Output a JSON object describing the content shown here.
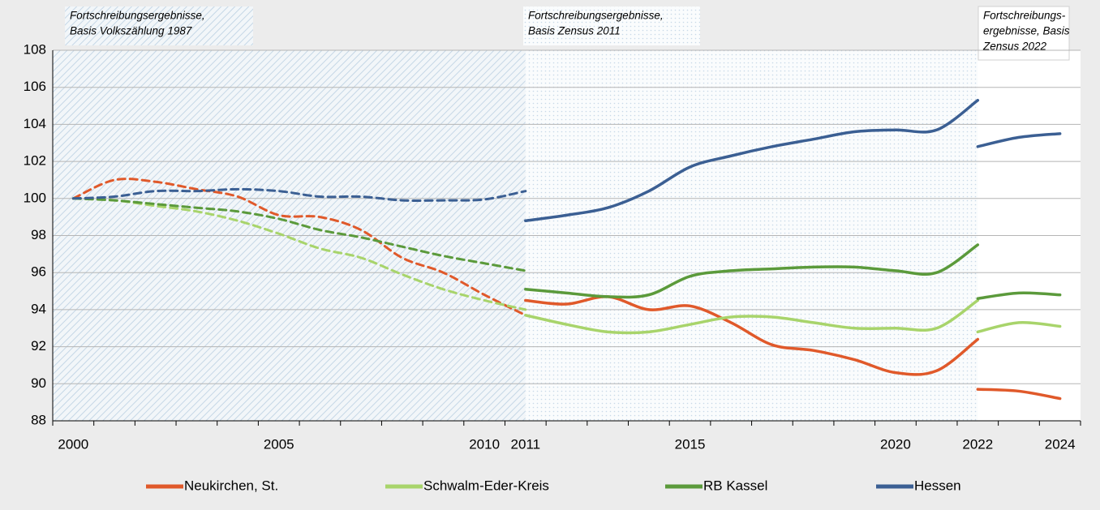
{
  "chart_data": {
    "type": "line",
    "categories": [
      2000,
      null,
      null,
      null,
      null,
      2005,
      null,
      null,
      null,
      null,
      2010,
      2011,
      null,
      null,
      null,
      2015,
      null,
      null,
      null,
      null,
      2020,
      null,
      2022,
      null,
      2024
    ],
    "ylim": [
      88,
      108
    ],
    "yticks": [
      88,
      90,
      92,
      94,
      96,
      98,
      100,
      102,
      104,
      106,
      108
    ],
    "grid": true,
    "legend": "bottom",
    "annotations": [
      [
        "Fortschreibungsergebnisse,",
        "Basis Volkszählung 1987"
      ],
      [
        "Fortschreibungsergebnisse,",
        "Basis Zensus 2011"
      ],
      [
        "Fortschreibungs-",
        "ergebnisse, Basis",
        "Zensus 2022"
      ]
    ],
    "segment_styles": [
      "dashed",
      "solid",
      "solid"
    ],
    "series": [
      {
        "name": "Neukirchen, St.",
        "color": "#e0592a",
        "segments": [
          {
            "values": [
              100,
              101,
              100.9,
              100.5,
              100.1,
              99.1,
              99.0,
              98.3,
              96.8,
              96.0,
              94.8,
              93.7,
              null,
              null,
              null,
              null,
              null,
              null,
              null,
              null,
              null,
              null,
              null,
              null,
              null
            ]
          },
          {
            "values": [
              null,
              null,
              null,
              null,
              null,
              null,
              null,
              null,
              null,
              null,
              null,
              94.5,
              94.3,
              94.7,
              94.0,
              94.2,
              93.3,
              92.1,
              91.8,
              91.3,
              90.6,
              90.7,
              92.4,
              null,
              null
            ]
          },
          {
            "values": [
              null,
              null,
              null,
              null,
              null,
              null,
              null,
              null,
              null,
              null,
              null,
              null,
              null,
              null,
              null,
              null,
              null,
              null,
              null,
              null,
              null,
              null,
              89.7,
              89.6,
              89.2
            ]
          }
        ]
      },
      {
        "name": "Schwalm-Eder-Kreis",
        "color": "#a8d46b",
        "segments": [
          {
            "values": [
              100,
              99.9,
              99.6,
              99.3,
              98.8,
              98.1,
              97.3,
              96.8,
              95.9,
              95.1,
              94.5,
              94.0,
              null,
              null,
              null,
              null,
              null,
              null,
              null,
              null,
              null,
              null,
              null,
              null,
              null
            ]
          },
          {
            "values": [
              null,
              null,
              null,
              null,
              null,
              null,
              null,
              null,
              null,
              null,
              null,
              93.7,
              93.2,
              92.8,
              92.8,
              93.2,
              93.6,
              93.6,
              93.3,
              93.0,
              93.0,
              93.0,
              94.5,
              null,
              null
            ]
          },
          {
            "values": [
              null,
              null,
              null,
              null,
              null,
              null,
              null,
              null,
              null,
              null,
              null,
              null,
              null,
              null,
              null,
              null,
              null,
              null,
              null,
              null,
              null,
              null,
              92.8,
              93.3,
              93.1
            ]
          }
        ]
      },
      {
        "name": "RB Kassel",
        "color": "#5b9a3b",
        "segments": [
          {
            "values": [
              100,
              99.9,
              99.7,
              99.5,
              99.3,
              98.9,
              98.3,
              97.9,
              97.4,
              96.9,
              96.5,
              96.1,
              null,
              null,
              null,
              null,
              null,
              null,
              null,
              null,
              null,
              null,
              null,
              null,
              null
            ]
          },
          {
            "values": [
              null,
              null,
              null,
              null,
              null,
              null,
              null,
              null,
              null,
              null,
              null,
              95.1,
              94.9,
              94.7,
              94.8,
              95.8,
              96.1,
              96.2,
              96.3,
              96.3,
              96.1,
              96.0,
              97.5,
              null,
              null
            ]
          },
          {
            "values": [
              null,
              null,
              null,
              null,
              null,
              null,
              null,
              null,
              null,
              null,
              null,
              null,
              null,
              null,
              null,
              null,
              null,
              null,
              null,
              null,
              null,
              null,
              94.6,
              94.9,
              94.8
            ]
          }
        ]
      },
      {
        "name": "Hessen",
        "color": "#3b5f93",
        "segments": [
          {
            "values": [
              100,
              100.1,
              100.4,
              100.4,
              100.5,
              100.4,
              100.1,
              100.1,
              99.9,
              99.9,
              99.95,
              100.4,
              null,
              null,
              null,
              null,
              null,
              null,
              null,
              null,
              null,
              null,
              null,
              null,
              null
            ]
          },
          {
            "values": [
              null,
              null,
              null,
              null,
              null,
              null,
              null,
              null,
              null,
              null,
              null,
              98.8,
              99.1,
              99.5,
              100.4,
              101.7,
              102.3,
              102.8,
              103.2,
              103.6,
              103.7,
              103.7,
              105.3,
              null,
              null
            ]
          },
          {
            "values": [
              null,
              null,
              null,
              null,
              null,
              null,
              null,
              null,
              null,
              null,
              null,
              null,
              null,
              null,
              null,
              null,
              null,
              null,
              null,
              null,
              null,
              null,
              102.8,
              103.3,
              103.5
            ]
          }
        ]
      }
    ]
  }
}
